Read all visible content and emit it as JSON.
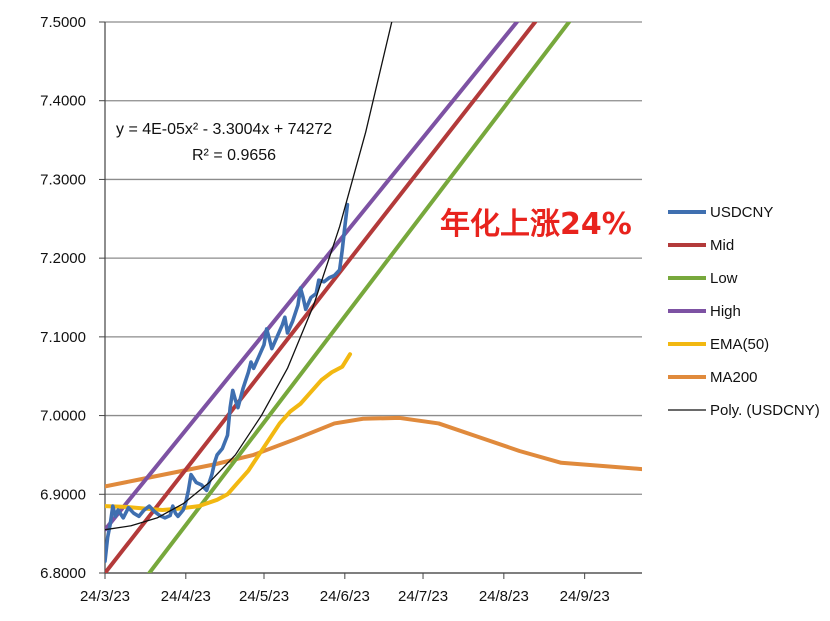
{
  "chart_data": {
    "type": "line",
    "title": "",
    "xlabel": "",
    "ylabel": "",
    "x_axis": {
      "tick_labels": [
        "24/3/23",
        "24/4/23",
        "24/5/23",
        "24/6/23",
        "24/7/23",
        "24/8/23",
        "24/9/23"
      ],
      "tick_dates": [
        "2023-03-24",
        "2023-04-24",
        "2023-05-24",
        "2023-06-24",
        "2023-07-24",
        "2023-08-24",
        "2023-09-24"
      ],
      "range": [
        "2023-03-24",
        "2023-10-16"
      ]
    },
    "y_axis": {
      "tick_labels": [
        "6.8000",
        "6.9000",
        "7.0000",
        "7.1000",
        "7.2000",
        "7.3000",
        "7.4000",
        "7.5000"
      ],
      "ylim": [
        6.8,
        7.5
      ]
    },
    "grid": "horizontal",
    "legend_position": "right",
    "series": [
      {
        "name": "USDCNY",
        "color": "#3f6fb0",
        "points": [
          [
            "2023-03-24",
            6.815
          ],
          [
            "2023-03-25",
            6.845
          ],
          [
            "2023-03-26",
            6.862
          ],
          [
            "2023-03-27",
            6.885
          ],
          [
            "2023-03-28",
            6.872
          ],
          [
            "2023-03-29",
            6.88
          ],
          [
            "2023-03-31",
            6.87
          ],
          [
            "2023-04-02",
            6.883
          ],
          [
            "2023-04-04",
            6.876
          ],
          [
            "2023-04-06",
            6.872
          ],
          [
            "2023-04-08",
            6.88
          ],
          [
            "2023-04-10",
            6.885
          ],
          [
            "2023-04-12",
            6.878
          ],
          [
            "2023-04-14",
            6.873
          ],
          [
            "2023-04-16",
            6.87
          ],
          [
            "2023-04-18",
            6.873
          ],
          [
            "2023-04-19",
            6.885
          ],
          [
            "2023-04-20",
            6.876
          ],
          [
            "2023-04-21",
            6.872
          ],
          [
            "2023-04-23",
            6.88
          ],
          [
            "2023-04-24",
            6.89
          ],
          [
            "2023-04-25",
            6.905
          ],
          [
            "2023-04-26",
            6.925
          ],
          [
            "2023-04-28",
            6.915
          ],
          [
            "2023-04-30",
            6.912
          ],
          [
            "2023-05-02",
            6.905
          ],
          [
            "2023-05-04",
            6.925
          ],
          [
            "2023-05-05",
            6.94
          ],
          [
            "2023-05-06",
            6.95
          ],
          [
            "2023-05-08",
            6.958
          ],
          [
            "2023-05-10",
            6.975
          ],
          [
            "2023-05-11",
            7.01
          ],
          [
            "2023-05-12",
            7.032
          ],
          [
            "2023-05-13",
            7.02
          ],
          [
            "2023-05-14",
            7.01
          ],
          [
            "2023-05-16",
            7.035
          ],
          [
            "2023-05-18",
            7.055
          ],
          [
            "2023-05-19",
            7.068
          ],
          [
            "2023-05-20",
            7.06
          ],
          [
            "2023-05-22",
            7.075
          ],
          [
            "2023-05-24",
            7.09
          ],
          [
            "2023-05-25",
            7.11
          ],
          [
            "2023-05-26",
            7.098
          ],
          [
            "2023-05-27",
            7.085
          ],
          [
            "2023-05-29",
            7.1
          ],
          [
            "2023-05-31",
            7.115
          ],
          [
            "2023-06-01",
            7.125
          ],
          [
            "2023-06-02",
            7.105
          ],
          [
            "2023-06-04",
            7.12
          ],
          [
            "2023-06-06",
            7.14
          ],
          [
            "2023-06-07",
            7.162
          ],
          [
            "2023-06-08",
            7.15
          ],
          [
            "2023-06-09",
            7.135
          ],
          [
            "2023-06-11",
            7.15
          ],
          [
            "2023-06-13",
            7.155
          ],
          [
            "2023-06-14",
            7.172
          ],
          [
            "2023-06-16",
            7.17
          ],
          [
            "2023-06-18",
            7.175
          ],
          [
            "2023-06-20",
            7.178
          ],
          [
            "2023-06-22",
            7.185
          ],
          [
            "2023-06-23",
            7.21
          ],
          [
            "2023-06-24",
            7.24
          ],
          [
            "2023-06-25",
            7.268
          ]
        ]
      },
      {
        "name": "Mid",
        "color": "#b33a3a",
        "points": [
          [
            "2023-03-24",
            6.8
          ],
          [
            "2023-09-05",
            7.5
          ]
        ]
      },
      {
        "name": "Low",
        "color": "#77a83c",
        "points": [
          [
            "2023-04-10",
            6.8
          ],
          [
            "2023-09-18",
            7.5
          ]
        ]
      },
      {
        "name": "High",
        "color": "#7d52a3",
        "points": [
          [
            "2023-03-24",
            6.855
          ],
          [
            "2023-08-29",
            7.5
          ]
        ]
      },
      {
        "name": "EMA(50)",
        "color": "#f2b811",
        "points": [
          [
            "2023-03-24",
            6.885
          ],
          [
            "2023-04-01",
            6.884
          ],
          [
            "2023-04-08",
            6.882
          ],
          [
            "2023-04-15",
            6.88
          ],
          [
            "2023-04-22",
            6.882
          ],
          [
            "2023-04-29",
            6.885
          ],
          [
            "2023-05-06",
            6.893
          ],
          [
            "2023-05-10",
            6.9
          ],
          [
            "2023-05-14",
            6.915
          ],
          [
            "2023-05-18",
            6.93
          ],
          [
            "2023-05-22",
            6.95
          ],
          [
            "2023-05-26",
            6.97
          ],
          [
            "2023-05-30",
            6.99
          ],
          [
            "2023-06-03",
            7.005
          ],
          [
            "2023-06-07",
            7.015
          ],
          [
            "2023-06-11",
            7.03
          ],
          [
            "2023-06-15",
            7.045
          ],
          [
            "2023-06-19",
            7.055
          ],
          [
            "2023-06-23",
            7.062
          ],
          [
            "2023-06-26",
            7.078
          ]
        ]
      },
      {
        "name": "MA200",
        "color": "#e08a3c",
        "points": [
          [
            "2023-03-24",
            6.91
          ],
          [
            "2023-04-05",
            6.918
          ],
          [
            "2023-04-20",
            6.928
          ],
          [
            "2023-05-05",
            6.938
          ],
          [
            "2023-05-20",
            6.95
          ],
          [
            "2023-06-05",
            6.97
          ],
          [
            "2023-06-20",
            6.99
          ],
          [
            "2023-07-01",
            6.996
          ],
          [
            "2023-07-15",
            6.997
          ],
          [
            "2023-07-30",
            6.99
          ],
          [
            "2023-08-15",
            6.972
          ],
          [
            "2023-08-30",
            6.955
          ],
          [
            "2023-09-15",
            6.94
          ],
          [
            "2023-10-01",
            6.936
          ],
          [
            "2023-10-16",
            6.932
          ]
        ]
      },
      {
        "name": "Poly. (USDCNY)",
        "color": "#111111",
        "style": "thin",
        "points": [
          [
            "2023-03-24",
            6.855
          ],
          [
            "2023-04-03",
            6.86
          ],
          [
            "2023-04-13",
            6.87
          ],
          [
            "2023-04-23",
            6.888
          ],
          [
            "2023-05-03",
            6.915
          ],
          [
            "2023-05-13",
            6.95
          ],
          [
            "2023-05-23",
            7.0
          ],
          [
            "2023-06-02",
            7.06
          ],
          [
            "2023-06-12",
            7.14
          ],
          [
            "2023-06-22",
            7.24
          ],
          [
            "2023-07-02",
            7.36
          ],
          [
            "2023-07-12",
            7.5
          ]
        ]
      }
    ],
    "trendline_label": {
      "equation": "y = 4E-05x² - 3.3004x + 74272",
      "r_squared": "R² = 0.9656"
    },
    "annotation": {
      "text": "年化上涨24%",
      "color": "#e8231d"
    }
  }
}
